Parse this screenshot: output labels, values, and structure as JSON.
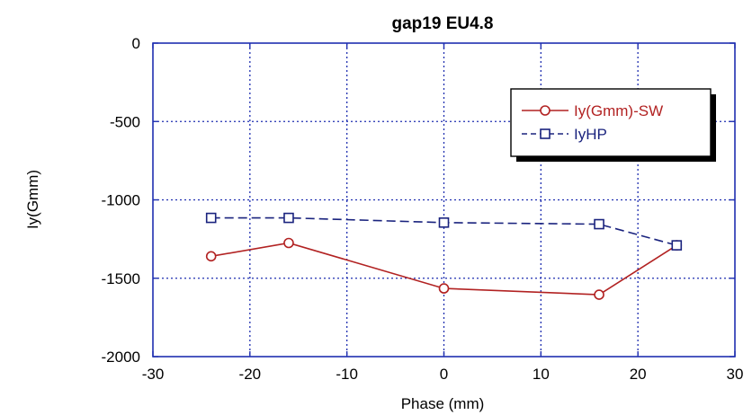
{
  "chart_data": {
    "type": "line",
    "title": "gap19  EU4.8",
    "xlabel": "Phase (mm)",
    "ylabel": "Iy(Gmm)",
    "xlim": [
      -30,
      30
    ],
    "ylim": [
      -2000,
      0
    ],
    "xticks": [
      "-30",
      "-20",
      "-10",
      "0",
      "10",
      "20",
      "30"
    ],
    "yticks": [
      "0",
      "-500",
      "-1000",
      "-1500",
      "-2000"
    ],
    "grid": true,
    "legend_position": "top-right",
    "series": [
      {
        "name": "Iy(Gmm)-SW",
        "color": "#b22222",
        "marker": "circle",
        "line_style": "solid",
        "x": [
          -24,
          -16,
          0,
          16,
          24
        ],
        "y": [
          -1360,
          -1275,
          -1565,
          -1605,
          -1290
        ]
      },
      {
        "name": "IyHP",
        "color": "#1a237e",
        "marker": "square",
        "line_style": "dashed",
        "x": [
          -24,
          -16,
          0,
          16,
          24
        ],
        "y": [
          -1115,
          -1115,
          -1145,
          -1155,
          -1290
        ]
      }
    ]
  }
}
